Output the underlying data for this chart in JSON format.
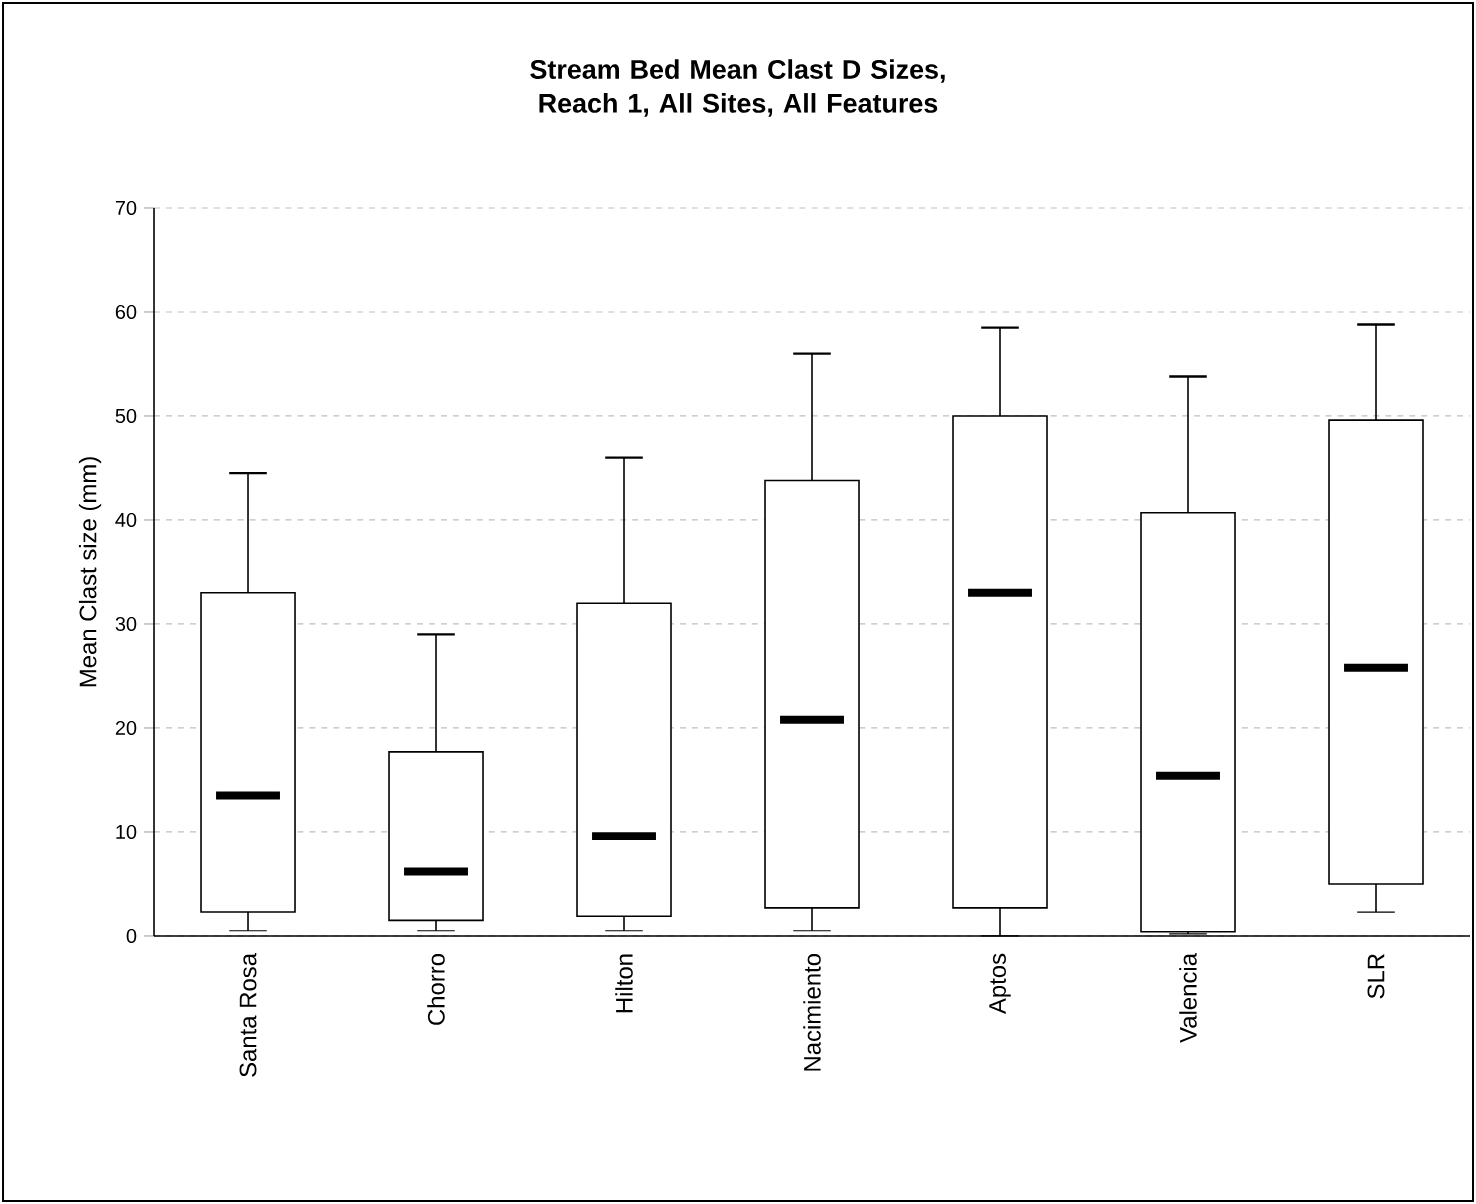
{
  "chart_data": {
    "type": "box",
    "title": "Stream Bed Mean Clast D Sizes, Reach 1, All Sites, All Features",
    "ylabel": "Mean Clast size (mm)",
    "categories": [
      "Santa Rosa",
      "Chorro",
      "Hilton",
      "Nacimiento",
      "Aptos",
      "Valencia",
      "SLR"
    ],
    "boxes": [
      {
        "low": 0.5,
        "q1": 2.3,
        "median": 13.5,
        "q3": 33,
        "high": 44.5
      },
      {
        "low": 0.5,
        "q1": 1.5,
        "median": 6.2,
        "q3": 17.7,
        "high": 29
      },
      {
        "low": 0.5,
        "q1": 1.9,
        "median": 9.6,
        "q3": 32,
        "high": 46
      },
      {
        "low": 0.5,
        "q1": 2.7,
        "median": 20.8,
        "q3": 43.8,
        "high": 56
      },
      {
        "low": 0,
        "q1": 2.7,
        "median": 33,
        "q3": 50,
        "high": 58.5
      },
      {
        "low": 0.2,
        "q1": 0.4,
        "median": 15.4,
        "q3": 40.7,
        "high": 53.8
      },
      {
        "low": 2.3,
        "q1": 5,
        "median": 25.8,
        "q3": 49.6,
        "high": 58.8
      }
    ],
    "ylim": [
      0,
      70
    ],
    "yticks": [
      0,
      10,
      20,
      30,
      40,
      50,
      60,
      70
    ],
    "grid": "y"
  }
}
